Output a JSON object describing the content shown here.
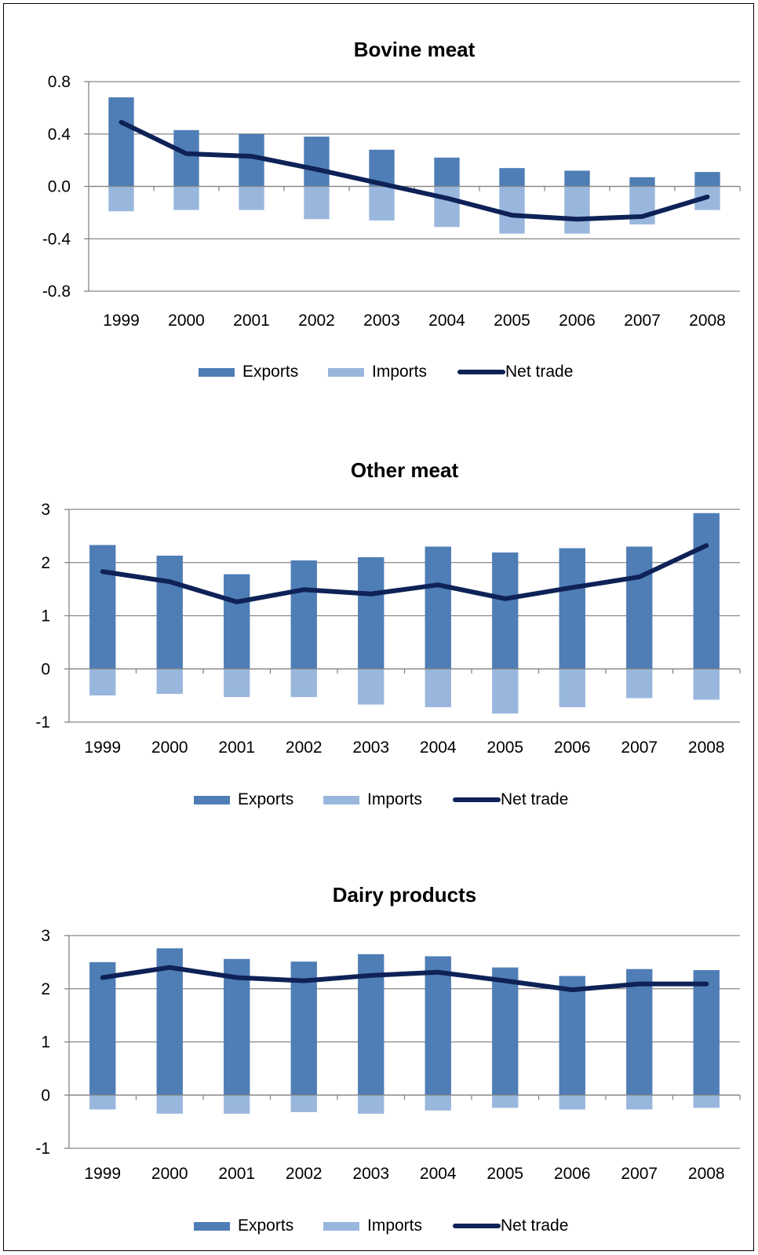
{
  "colors": {
    "exports": "#4F7DB5",
    "imports": "#99B7DD",
    "net": "#0E2257",
    "grid": "#868686",
    "axis": "#868686"
  },
  "legend": {
    "exports": "Exports",
    "imports": "Imports",
    "net": "Net trade"
  },
  "chart_data": [
    {
      "type": "bar",
      "title": "Bovine meat",
      "categories": [
        "1999",
        "2000",
        "2001",
        "2002",
        "2003",
        "2004",
        "2005",
        "2006",
        "2007",
        "2008"
      ],
      "ylim": [
        -0.8,
        0.8
      ],
      "yticks": [
        "0.8",
        "0.4",
        "0.0",
        "-0.4",
        "-0.8"
      ],
      "ytick_values": [
        0.8,
        0.4,
        0.0,
        -0.4,
        -0.8
      ],
      "grid": true,
      "legend_position": "bottom",
      "series": [
        {
          "name": "Exports",
          "kind": "bar",
          "values": [
            0.68,
            0.43,
            0.4,
            0.38,
            0.28,
            0.22,
            0.14,
            0.12,
            0.07,
            0.11
          ]
        },
        {
          "name": "Imports",
          "kind": "bar",
          "values": [
            -0.19,
            -0.18,
            -0.18,
            -0.25,
            -0.26,
            -0.31,
            -0.36,
            -0.36,
            -0.29,
            -0.18
          ]
        },
        {
          "name": "Net trade",
          "kind": "line",
          "values": [
            0.49,
            0.25,
            0.23,
            0.13,
            0.02,
            -0.09,
            -0.22,
            -0.25,
            -0.23,
            -0.08
          ]
        }
      ]
    },
    {
      "type": "bar",
      "title": "Other meat",
      "categories": [
        "1999",
        "2000",
        "2001",
        "2002",
        "2003",
        "2004",
        "2005",
        "2006",
        "2007",
        "2008"
      ],
      "ylim": [
        -1,
        3
      ],
      "yticks": [
        "3",
        "2",
        "1",
        "0",
        "-1"
      ],
      "ytick_values": [
        3,
        2,
        1,
        0,
        -1
      ],
      "grid": true,
      "legend_position": "bottom",
      "series": [
        {
          "name": "Exports",
          "kind": "bar",
          "values": [
            2.33,
            2.13,
            1.78,
            2.04,
            2.1,
            2.3,
            2.19,
            2.27,
            2.3,
            2.93
          ]
        },
        {
          "name": "Imports",
          "kind": "bar",
          "values": [
            -0.5,
            -0.47,
            -0.53,
            -0.53,
            -0.67,
            -0.72,
            -0.84,
            -0.72,
            -0.55,
            -0.58
          ]
        },
        {
          "name": "Net trade",
          "kind": "line",
          "values": [
            1.83,
            1.64,
            1.26,
            1.49,
            1.41,
            1.58,
            1.32,
            1.53,
            1.73,
            2.32
          ]
        }
      ]
    },
    {
      "type": "bar",
      "title": "Dairy products",
      "categories": [
        "1999",
        "2000",
        "2001",
        "2002",
        "2003",
        "2004",
        "2005",
        "2006",
        "2007",
        "2008"
      ],
      "ylim": [
        -1,
        3
      ],
      "yticks": [
        "3",
        "2",
        "1",
        "0",
        "-1"
      ],
      "ytick_values": [
        3,
        2,
        1,
        0,
        -1
      ],
      "grid": true,
      "legend_position": "bottom",
      "series": [
        {
          "name": "Exports",
          "kind": "bar",
          "values": [
            2.5,
            2.76,
            2.56,
            2.51,
            2.65,
            2.61,
            2.4,
            2.24,
            2.37,
            2.35
          ]
        },
        {
          "name": "Imports",
          "kind": "bar",
          "values": [
            -0.27,
            -0.35,
            -0.35,
            -0.32,
            -0.35,
            -0.29,
            -0.24,
            -0.27,
            -0.27,
            -0.24
          ]
        },
        {
          "name": "Net trade",
          "kind": "line",
          "values": [
            2.21,
            2.4,
            2.21,
            2.15,
            2.25,
            2.31,
            2.15,
            1.98,
            2.09,
            2.09
          ]
        }
      ]
    }
  ]
}
